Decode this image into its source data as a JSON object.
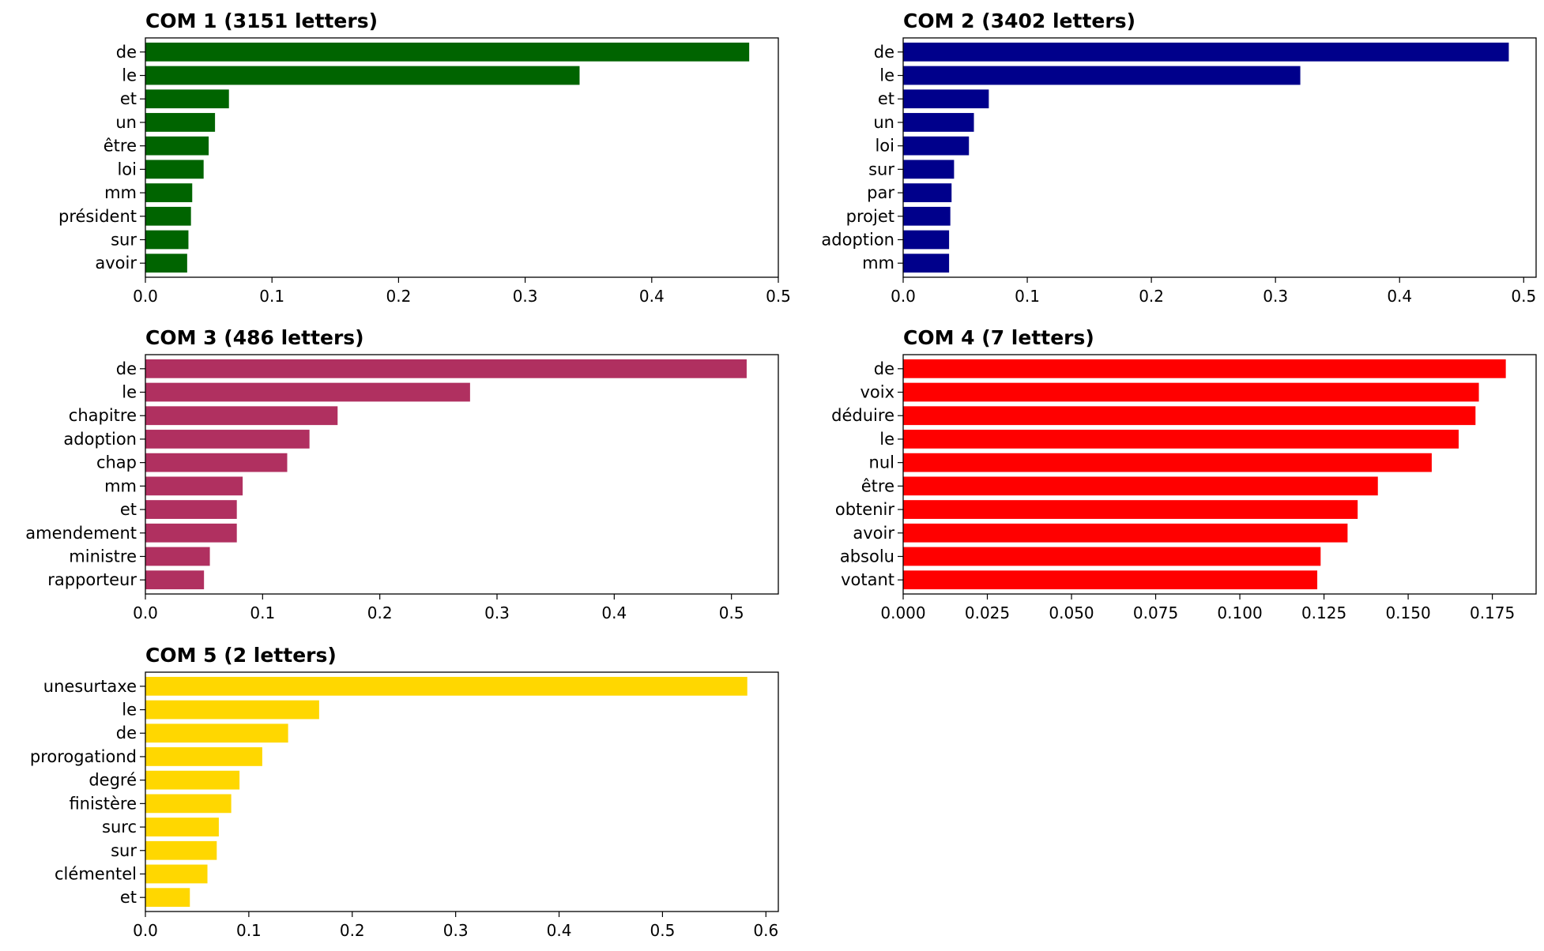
{
  "chart_data": [
    {
      "type": "bar",
      "orientation": "horizontal",
      "title": "COM 1 (3151 letters)",
      "color": "#006400",
      "categories": [
        "de",
        "le",
        "et",
        "un",
        "être",
        "loi",
        "mm",
        "président",
        "sur",
        "avoir"
      ],
      "values": [
        0.477,
        0.343,
        0.066,
        0.055,
        0.05,
        0.046,
        0.037,
        0.036,
        0.034,
        0.033
      ],
      "xlim": [
        0,
        0.5
      ],
      "xticks": [
        0.0,
        0.1,
        0.2,
        0.3,
        0.4,
        0.5
      ],
      "xtick_labels": [
        "0.0",
        "0.1",
        "0.2",
        "0.3",
        "0.4",
        "0.5"
      ],
      "grid": false
    },
    {
      "type": "bar",
      "orientation": "horizontal",
      "title": "COM 2 (3402 letters)",
      "color": "#00008B",
      "categories": [
        "de",
        "le",
        "et",
        "un",
        "loi",
        "sur",
        "par",
        "projet",
        "adoption",
        "mm"
      ],
      "values": [
        0.488,
        0.32,
        0.069,
        0.057,
        0.053,
        0.041,
        0.039,
        0.038,
        0.037,
        0.037
      ],
      "xlim": [
        0,
        0.51
      ],
      "xticks": [
        0.0,
        0.1,
        0.2,
        0.3,
        0.4,
        0.5
      ],
      "xtick_labels": [
        "0.0",
        "0.1",
        "0.2",
        "0.3",
        "0.4",
        "0.5"
      ],
      "grid": false
    },
    {
      "type": "bar",
      "orientation": "horizontal",
      "title": "COM 3 (486 letters)",
      "color": "#B03060",
      "categories": [
        "de",
        "le",
        "chapitre",
        "adoption",
        "chap",
        "mm",
        "et",
        "amendement",
        "ministre",
        "rapporteur"
      ],
      "values": [
        0.513,
        0.277,
        0.164,
        0.14,
        0.121,
        0.083,
        0.078,
        0.078,
        0.055,
        0.05
      ],
      "xlim": [
        0,
        0.54
      ],
      "xticks": [
        0.0,
        0.1,
        0.2,
        0.3,
        0.4,
        0.5
      ],
      "xtick_labels": [
        "0.0",
        "0.1",
        "0.2",
        "0.3",
        "0.4",
        "0.5"
      ],
      "grid": false
    },
    {
      "type": "bar",
      "orientation": "horizontal",
      "title": "COM 4 (7 letters)",
      "color": "#FF0000",
      "categories": [
        "de",
        "voix",
        "déduire",
        "le",
        "nul",
        "être",
        "obtenir",
        "avoir",
        "absolu",
        "votant"
      ],
      "values": [
        0.179,
        0.171,
        0.17,
        0.165,
        0.157,
        0.141,
        0.135,
        0.132,
        0.124,
        0.123
      ],
      "xlim": [
        0,
        0.188
      ],
      "xticks": [
        0.0,
        0.025,
        0.05,
        0.075,
        0.1,
        0.125,
        0.15,
        0.175
      ],
      "xtick_labels": [
        "0.000",
        "0.025",
        "0.050",
        "0.075",
        "0.100",
        "0.125",
        "0.150",
        "0.175"
      ],
      "grid": false
    },
    {
      "type": "bar",
      "orientation": "horizontal",
      "title": "COM 5 (2 letters)",
      "color": "#FFD700",
      "categories": [
        "unesurtaxe",
        "le",
        "de",
        "prorogationd",
        "degré",
        "finistère",
        "surc",
        "sur",
        "clémentel",
        "et"
      ],
      "values": [
        0.582,
        0.168,
        0.138,
        0.113,
        0.091,
        0.083,
        0.071,
        0.069,
        0.06,
        0.043
      ],
      "xlim": [
        0,
        0.612
      ],
      "xticks": [
        0.0,
        0.1,
        0.2,
        0.3,
        0.4,
        0.5,
        0.6
      ],
      "xtick_labels": [
        "0.0",
        "0.1",
        "0.2",
        "0.3",
        "0.4",
        "0.5",
        "0.6"
      ],
      "grid": false
    }
  ]
}
